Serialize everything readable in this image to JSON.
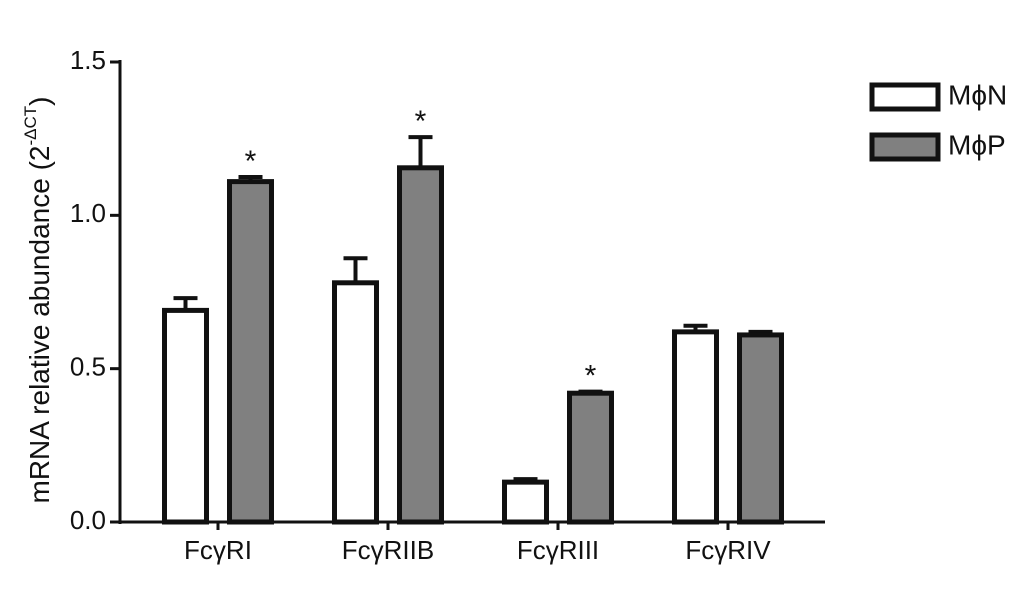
{
  "chart_data": {
    "type": "bar",
    "ylabel": [
      "mRNA relative abundance (2",
      "-ΔCT",
      ")"
    ],
    "categories": [
      "FcγRI",
      "FcγRIIB",
      "FcγRIII",
      "FcγRIV"
    ],
    "series": [
      {
        "name": "MϕN",
        "color": "#ffffff",
        "values": [
          0.69,
          0.78,
          0.13,
          0.62
        ],
        "errors": [
          0.04,
          0.08,
          0.01,
          0.02
        ]
      },
      {
        "name": "MϕP",
        "color": "#808080",
        "values": [
          1.11,
          1.155,
          0.42,
          0.61
        ],
        "errors": [
          0.015,
          0.1,
          0.005,
          0.01
        ],
        "significance": [
          "*",
          "*",
          "*",
          null
        ]
      }
    ],
    "ylim": [
      0,
      1.5
    ],
    "yticks": [
      {
        "value": 0,
        "label": "0.0"
      },
      0.5,
      {
        "value": 1,
        "label": "1.0"
      },
      1.5
    ],
    "legend": "right"
  }
}
